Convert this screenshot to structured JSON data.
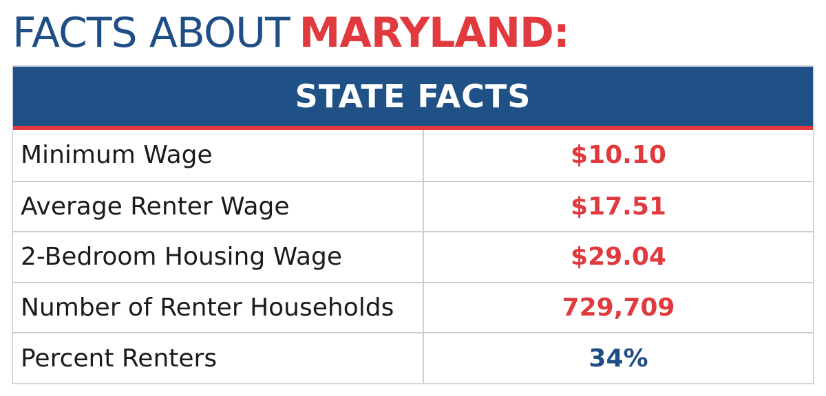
{
  "heading": {
    "prefix": "FACTS ABOUT",
    "state": "MARYLAND:"
  },
  "table": {
    "title": "STATE FACTS",
    "rows": [
      {
        "label": "Minimum Wage",
        "value": "$10.10"
      },
      {
        "label": "Average Renter Wage",
        "value": "$17.51"
      },
      {
        "label": "2-Bedroom Housing Wage",
        "value": "$29.04"
      },
      {
        "label": "Number of Renter Households",
        "value": "729,709"
      },
      {
        "label": "Percent Renters",
        "value": "34%"
      }
    ]
  },
  "colors": {
    "blue": "#1f4e86",
    "red": "#e03a3e",
    "percent_value": "#1f4e86",
    "other_values": "#e03a3e"
  }
}
